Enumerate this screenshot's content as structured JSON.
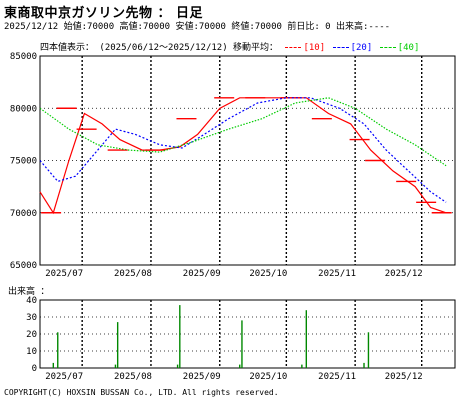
{
  "header": {
    "title": "東商取中京ガソリン先物 ： 日足",
    "info": "2025/12/12 始値:70000 高値:70000 安値:70000 終値:70000 前日比: 0 出来高:----"
  },
  "legend": {
    "label": "四本値表示： (2025/06/12～2025/12/12) 移動平均：",
    "ma10": "[10]",
    "ma20": "[20]",
    "ma40": "[40]"
  },
  "colors": {
    "candle": "#ff0000",
    "ma10": "#ff0000",
    "ma20": "#0000ff",
    "ma40": "#00cc00",
    "volume": "#008800"
  },
  "volume_label": "出来高 ：",
  "copyright": "COPYRIGHT(C) HOXSIN BUSSAN Co., LTD. All rights reserved.",
  "chart_data": [
    {
      "type": "line",
      "title": "",
      "x_tick_labels": [
        "2025/07",
        "2025/08",
        "2025/09",
        "2025/10",
        "2025/11",
        "2025/12"
      ],
      "y_tick_labels": [
        "85000",
        "80000",
        "75000",
        "70000",
        "65000"
      ],
      "ylim": [
        65000,
        85000
      ],
      "grid": true,
      "candles_approx_weekly": [
        {
          "x": "2025/06 w3",
          "price": 70000
        },
        {
          "x": "2025/06 w4",
          "price": 80000
        },
        {
          "x": "2025/07 w1",
          "price": 78000
        },
        {
          "x": "2025/07 w3",
          "price": 76000
        },
        {
          "x": "2025/08 w1",
          "price": 76000
        },
        {
          "x": "2025/08 w3",
          "price": 79000
        },
        {
          "x": "2025/09 w1",
          "price": 81000
        },
        {
          "x": "2025/09 w3",
          "price": 81000
        },
        {
          "x": "2025/10 w1",
          "price": 81000
        },
        {
          "x": "2025/10 w3",
          "price": 79000
        },
        {
          "x": "2025/11 w1",
          "price": 77000
        },
        {
          "x": "2025/11 w2",
          "price": 75000
        },
        {
          "x": "2025/11 w4",
          "price": 73000
        },
        {
          "x": "2025/12 w1",
          "price": 71000
        },
        {
          "x": "2025/12 w2",
          "price": 70000
        }
      ],
      "series": [
        {
          "name": "[10]",
          "values": [
            {
              "x": "2025/06/12",
              "y": 72000
            },
            {
              "x": "2025/06/18",
              "y": 70000
            },
            {
              "x": "2025/06/25",
              "y": 75000
            },
            {
              "x": "2025/07/02",
              "y": 79500
            },
            {
              "x": "2025/07/10",
              "y": 78500
            },
            {
              "x": "2025/07/18",
              "y": 77000
            },
            {
              "x": "2025/07/28",
              "y": 76000
            },
            {
              "x": "2025/08/05",
              "y": 76000
            },
            {
              "x": "2025/08/14",
              "y": 76300
            },
            {
              "x": "2025/08/22",
              "y": 77500
            },
            {
              "x": "2025/09/01",
              "y": 80000
            },
            {
              "x": "2025/09/10",
              "y": 81000
            },
            {
              "x": "2025/09/20",
              "y": 81000
            },
            {
              "x": "2025/10/01",
              "y": 81000
            },
            {
              "x": "2025/10/10",
              "y": 81000
            },
            {
              "x": "2025/10/20",
              "y": 79500
            },
            {
              "x": "2025/10/30",
              "y": 78500
            },
            {
              "x": "2025/11/08",
              "y": 76000
            },
            {
              "x": "2025/11/18",
              "y": 74000
            },
            {
              "x": "2025/11/28",
              "y": 72500
            },
            {
              "x": "2025/12/05",
              "y": 70500
            },
            {
              "x": "2025/12/12",
              "y": 70000
            }
          ]
        },
        {
          "name": "[20]",
          "values": [
            {
              "x": "2025/06/12",
              "y": 75000
            },
            {
              "x": "2025/06/20",
              "y": 73000
            },
            {
              "x": "2025/06/28",
              "y": 73500
            },
            {
              "x": "2025/07/08",
              "y": 76000
            },
            {
              "x": "2025/07/16",
              "y": 78000
            },
            {
              "x": "2025/07/25",
              "y": 77500
            },
            {
              "x": "2025/08/05",
              "y": 76500
            },
            {
              "x": "2025/08/15",
              "y": 76200
            },
            {
              "x": "2025/08/25",
              "y": 77500
            },
            {
              "x": "2025/09/05",
              "y": 79000
            },
            {
              "x": "2025/09/18",
              "y": 80500
            },
            {
              "x": "2025/10/01",
              "y": 81000
            },
            {
              "x": "2025/10/12",
              "y": 81000
            },
            {
              "x": "2025/10/25",
              "y": 80000
            },
            {
              "x": "2025/11/05",
              "y": 78500
            },
            {
              "x": "2025/11/15",
              "y": 76000
            },
            {
              "x": "2025/11/25",
              "y": 74000
            },
            {
              "x": "2025/12/05",
              "y": 72000
            },
            {
              "x": "2025/12/12",
              "y": 71000
            }
          ]
        },
        {
          "name": "[40]",
          "values": [
            {
              "x": "2025/06/12",
              "y": 80000
            },
            {
              "x": "2025/06/25",
              "y": 78000
            },
            {
              "x": "2025/07/08",
              "y": 76500
            },
            {
              "x": "2025/07/22",
              "y": 76000
            },
            {
              "x": "2025/08/05",
              "y": 75800
            },
            {
              "x": "2025/08/20",
              "y": 76800
            },
            {
              "x": "2025/09/05",
              "y": 78000
            },
            {
              "x": "2025/09/20",
              "y": 79000
            },
            {
              "x": "2025/10/05",
              "y": 80500
            },
            {
              "x": "2025/10/20",
              "y": 81000
            },
            {
              "x": "2025/11/01",
              "y": 80000
            },
            {
              "x": "2025/11/15",
              "y": 78000
            },
            {
              "x": "2025/11/28",
              "y": 76500
            },
            {
              "x": "2025/12/12",
              "y": 74500
            }
          ]
        }
      ]
    },
    {
      "type": "bar",
      "title": "",
      "x_tick_labels": [
        "2025/07",
        "2025/08",
        "2025/09",
        "2025/10",
        "2025/11",
        "2025/12"
      ],
      "y_tick_labels": [
        "40",
        "30",
        "20",
        "10",
        "0"
      ],
      "ylim": [
        0,
        40
      ],
      "grid": true,
      "values": [
        {
          "x": "2025/06/18",
          "y": 3
        },
        {
          "x": "2025/06/20",
          "y": 21
        },
        {
          "x": "2025/07/16",
          "y": 2
        },
        {
          "x": "2025/07/17",
          "y": 27
        },
        {
          "x": "2025/08/13",
          "y": 2
        },
        {
          "x": "2025/08/14",
          "y": 37
        },
        {
          "x": "2025/09/10",
          "y": 2
        },
        {
          "x": "2025/09/11",
          "y": 28
        },
        {
          "x": "2025/10/08",
          "y": 2
        },
        {
          "x": "2025/10/10",
          "y": 34
        },
        {
          "x": "2025/11/05",
          "y": 3
        },
        {
          "x": "2025/11/07",
          "y": 21
        }
      ]
    }
  ]
}
